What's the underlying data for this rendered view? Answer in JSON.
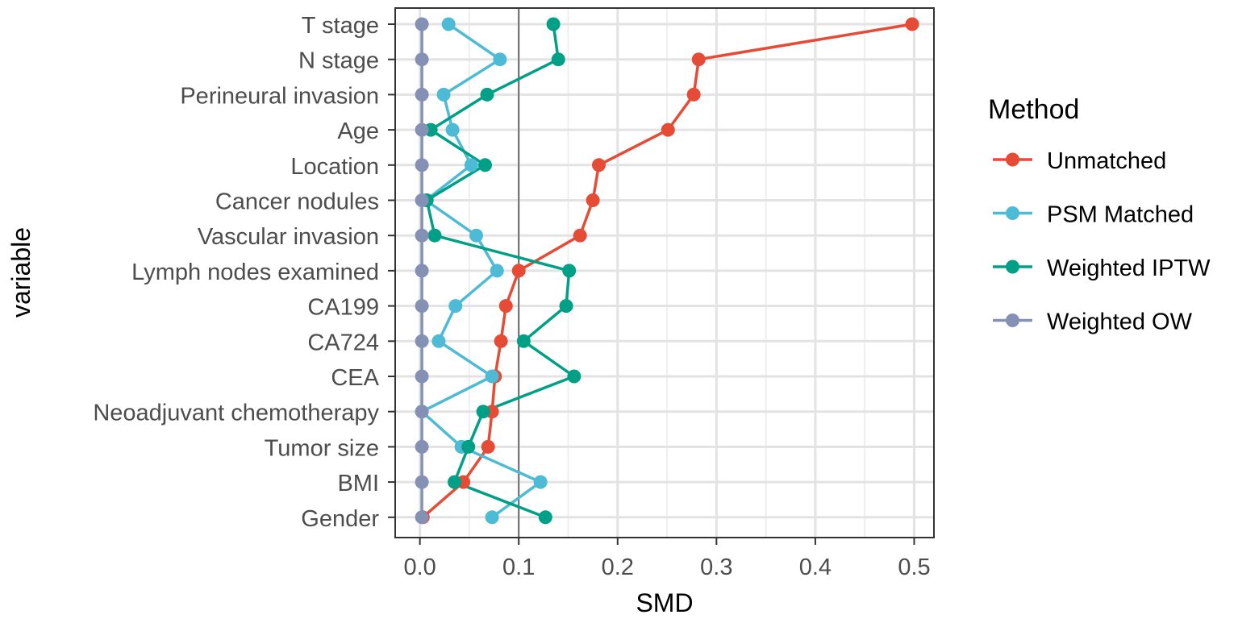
{
  "chart_data": {
    "type": "line",
    "title": "",
    "xlabel": "SMD",
    "ylabel": "variable",
    "xlim": [
      -0.025,
      0.52
    ],
    "x_ticks": [
      0.0,
      0.1,
      0.2,
      0.3,
      0.4,
      0.5
    ],
    "x_tick_labels": [
      "0.0",
      "0.1",
      "0.2",
      "0.3",
      "0.4",
      "0.5"
    ],
    "reference_line_x": 0.1,
    "grid": true,
    "legend_position": "right",
    "legend_title": "Method",
    "categories": [
      "T stage",
      "N stage",
      "Perineural invasion",
      "Age",
      "Location",
      "Cancer nodules",
      "Vascular invasion",
      "Lymph nodes examined",
      "CA199",
      "CA724",
      "CEA",
      "Neoadjuvant chemotherapy",
      "Tumor size",
      "BMI",
      "Gender"
    ],
    "series": [
      {
        "name": "Unmatched",
        "color": "#e64b35",
        "values": [
          0.498,
          0.282,
          0.277,
          0.251,
          0.181,
          0.175,
          0.162,
          0.1,
          0.087,
          0.082,
          0.076,
          0.073,
          0.069,
          0.044,
          0.003
        ]
      },
      {
        "name": "PSM Matched",
        "color": "#4dbbd5",
        "values": [
          0.029,
          0.081,
          0.024,
          0.033,
          0.052,
          0.006,
          0.057,
          0.078,
          0.036,
          0.019,
          0.073,
          0.002,
          0.042,
          0.122,
          0.073
        ]
      },
      {
        "name": "Weighted IPTW",
        "color": "#00a087",
        "values": [
          0.135,
          0.14,
          0.068,
          0.011,
          0.066,
          0.007,
          0.015,
          0.151,
          0.148,
          0.105,
          0.156,
          0.064,
          0.049,
          0.035,
          0.127
        ]
      },
      {
        "name": "Weighted OW",
        "color": "#8491b4",
        "values": [
          0.002,
          0.002,
          0.002,
          0.002,
          0.002,
          0.002,
          0.002,
          0.002,
          0.002,
          0.002,
          0.002,
          0.002,
          0.002,
          0.002,
          0.002
        ]
      }
    ]
  }
}
